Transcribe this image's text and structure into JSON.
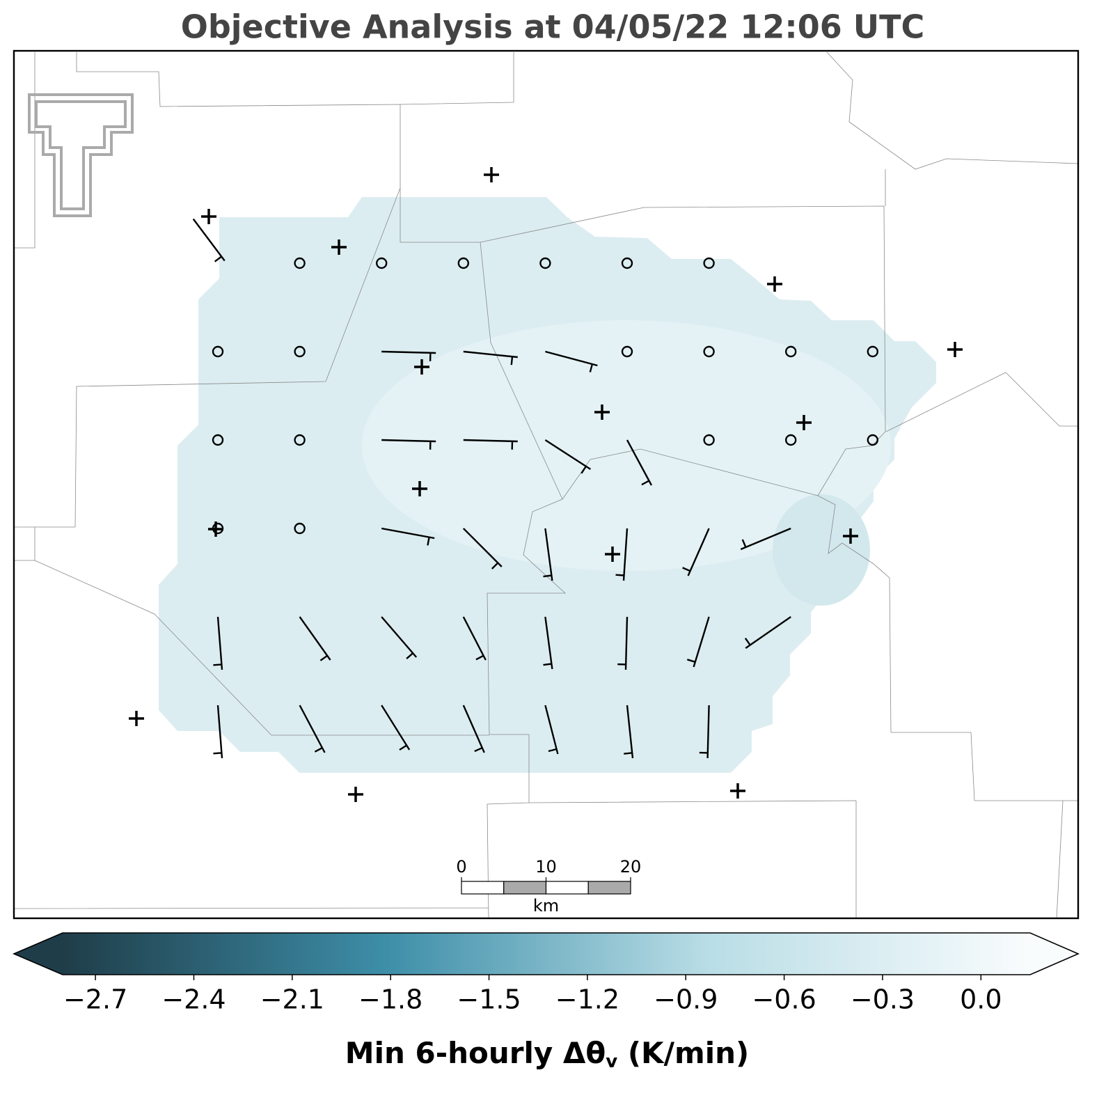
{
  "title": "Objective Analysis at 04/05/22 12:06 UTC",
  "colorbar": {
    "lim": [
      -2.8,
      0.15
    ],
    "colors": [
      "#1f3d49",
      "#3d8ea8",
      "#b9dde6",
      "#f9fcfd"
    ],
    "ticks": [
      {
        "value": -2.7,
        "label": "−2.7"
      },
      {
        "value": -2.4,
        "label": "−2.4"
      },
      {
        "value": -2.1,
        "label": "−2.1"
      },
      {
        "value": -1.8,
        "label": "−1.8"
      },
      {
        "value": -1.5,
        "label": "−1.5"
      },
      {
        "value": -1.2,
        "label": "−1.2"
      },
      {
        "value": -0.9,
        "label": "−0.9"
      },
      {
        "value": -0.6,
        "label": "−0.6"
      },
      {
        "value": -0.3,
        "label": "−0.3"
      },
      {
        "value": 0,
        "label": "0.0"
      }
    ],
    "label": [
      "Min 6-hourly Δθ",
      "v",
      " (K/min)"
    ]
  },
  "scale_bar": {
    "ticks": [
      0,
      10,
      20
    ],
    "unit": "km"
  }
}
